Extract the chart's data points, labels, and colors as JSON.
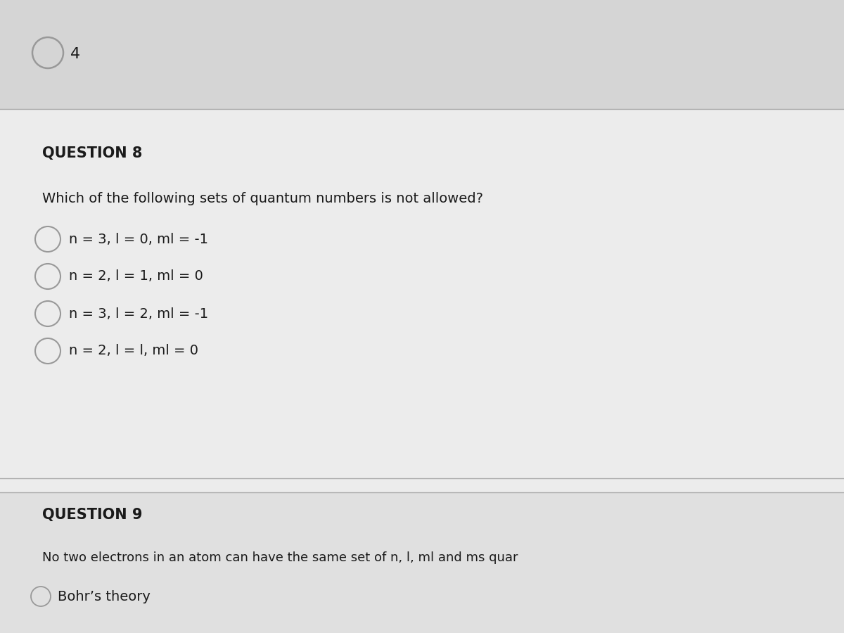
{
  "background_color": "#d5d5d5",
  "top_section_color": "#d5d5d5",
  "q8_section_color": "#ececec",
  "q9_section_color": "#e0e0e0",
  "top_answer": "4",
  "question8_number": "QUESTION 8",
  "question8_text": "Which of the following sets of quantum numbers is not allowed?",
  "options": [
    "n = 3, l = 0, ml = -1",
    "n = 2, l = 1, ml = 0",
    "n = 3, l = 2, ml = -1",
    "n = 2, l = l, ml = 0"
  ],
  "question9_number": "QUESTION 9",
  "question9_text": "No two electrons in an atom can have the same set of n, l, ml and ms quar",
  "question9_option": "Bohr’s theory",
  "text_color": "#1a1a1a",
  "line_color": "#aaaaaa",
  "circle_edge_color": "#999999",
  "title_fontsize": 15,
  "body_fontsize": 14,
  "option_fontsize": 14
}
